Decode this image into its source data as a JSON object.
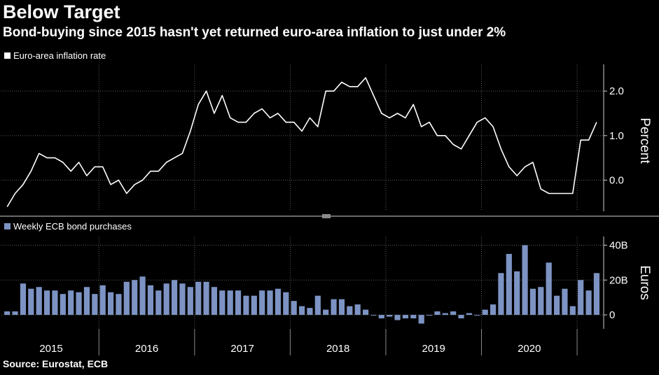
{
  "header": {
    "title": "Below Target",
    "subtitle": "Bond-buying since 2015 hasn't yet returned euro-area inflation to just under 2%"
  },
  "source": "Source: Eurostat, ECB",
  "colors": {
    "background": "#000000",
    "line": "#ffffff",
    "bars": "#7c93c3",
    "grid": "#5a5a5a"
  },
  "chart_data": [
    {
      "type": "line",
      "legend": "Euro-area inflation rate",
      "ylabel": "Percent",
      "ylim": [
        -0.7,
        2.6
      ],
      "yticks": [
        0.0,
        1.0,
        2.0
      ],
      "ytick_labels": [
        "0.0",
        "1.0",
        "2.0"
      ],
      "x_start": 2015.0,
      "x_step": 0.0833,
      "values": [
        -0.6,
        -0.3,
        -0.1,
        0.2,
        0.6,
        0.5,
        0.5,
        0.4,
        0.2,
        0.4,
        0.1,
        0.3,
        0.3,
        -0.1,
        0.0,
        -0.3,
        -0.1,
        0.0,
        0.2,
        0.2,
        0.4,
        0.5,
        0.6,
        1.1,
        1.7,
        2.0,
        1.5,
        1.9,
        1.4,
        1.3,
        1.3,
        1.5,
        1.6,
        1.4,
        1.5,
        1.3,
        1.3,
        1.1,
        1.4,
        1.2,
        2.0,
        2.0,
        2.2,
        2.1,
        2.1,
        2.3,
        1.9,
        1.5,
        1.4,
        1.5,
        1.4,
        1.7,
        1.2,
        1.3,
        1.0,
        1.0,
        0.8,
        0.7,
        1.0,
        1.3,
        1.4,
        1.2,
        0.7,
        0.3,
        0.1,
        0.3,
        0.4,
        -0.2,
        -0.3,
        -0.3,
        -0.3,
        -0.3,
        0.9,
        0.9,
        1.3
      ]
    },
    {
      "type": "bar",
      "legend": "Weekly ECB bond purchases",
      "ylabel": "Euros",
      "ylim": [
        -8,
        45
      ],
      "yticks": [
        0,
        20,
        40
      ],
      "ytick_labels": [
        "0",
        "20B",
        "40B"
      ],
      "x_start": 2015.0,
      "x_step": 0.0833,
      "values": [
        2,
        2,
        18,
        15,
        16,
        14,
        14,
        12,
        14,
        13,
        16,
        12,
        17,
        13,
        12,
        19,
        20,
        22,
        17,
        14,
        18,
        20,
        18,
        16,
        19,
        19,
        16,
        14,
        14,
        14,
        11,
        11,
        14,
        14,
        15,
        13,
        8,
        5,
        4,
        11,
        3,
        9,
        9,
        5,
        6,
        3,
        0,
        -2,
        -1,
        -3,
        -2,
        -2,
        -5,
        0,
        2,
        1,
        2,
        -2,
        1,
        0,
        3,
        6,
        24,
        35,
        25,
        40,
        15,
        16,
        30,
        11,
        15,
        5,
        20,
        14,
        24
      ]
    }
  ],
  "x_axis": {
    "labels": [
      "2015",
      "2016",
      "2017",
      "2018",
      "2019",
      "2020"
    ]
  }
}
